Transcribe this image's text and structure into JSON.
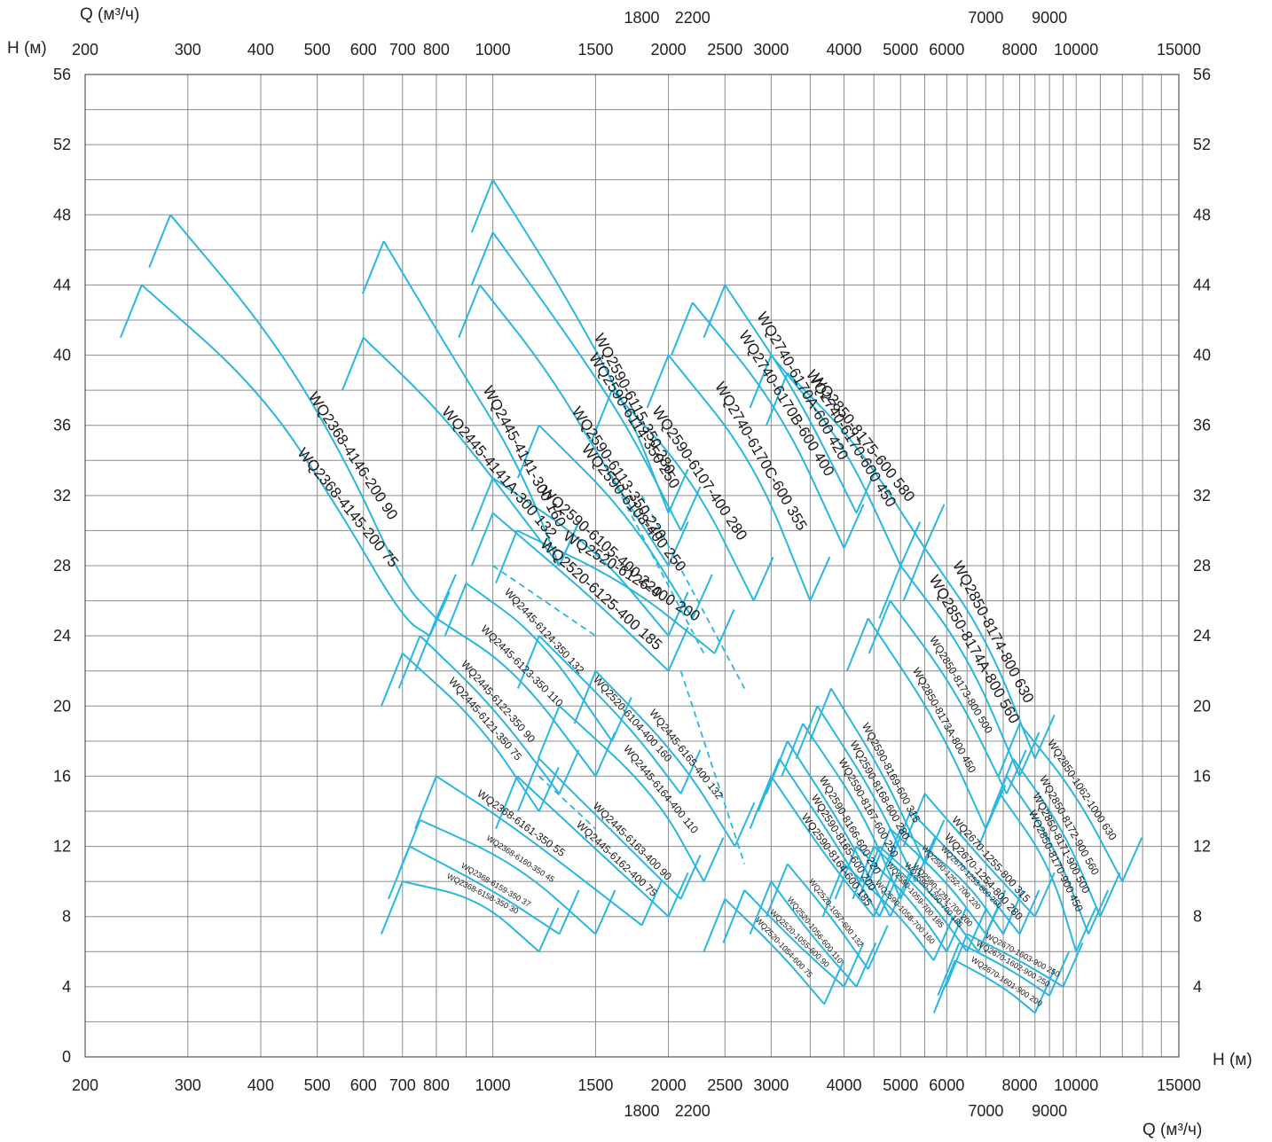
{
  "chart_data": {
    "type": "line",
    "title": "",
    "accent_color": "#29b6e0",
    "x_axis": {
      "label": "Q (м³/ч)",
      "scale": "log",
      "range": [
        200,
        15000
      ],
      "ticks_row1": [
        "200",
        "300",
        "400",
        "500",
        "600",
        "700",
        "800",
        "1000",
        "1500",
        "2000",
        "2500",
        "3000",
        "4000",
        "5000",
        "6000",
        "8000",
        "10000",
        "15000"
      ],
      "ticks_row2": [
        "1800",
        "2200",
        "7000",
        "9000"
      ],
      "tick_values_row1": [
        200,
        300,
        400,
        500,
        600,
        700,
        800,
        1000,
        1500,
        2000,
        2500,
        3000,
        4000,
        5000,
        6000,
        8000,
        10000,
        15000
      ],
      "tick_values_row2": [
        1800,
        2200,
        7000,
        9000
      ]
    },
    "y_axis": {
      "label": "H (м)",
      "range": [
        0,
        56
      ],
      "ticks": [
        "0",
        "4",
        "8",
        "12",
        "16",
        "20",
        "24",
        "28",
        "32",
        "36",
        "40",
        "44",
        "48",
        "52",
        "56"
      ]
    },
    "grid": true,
    "series": [
      {
        "name": "WQ2368-4146-200  90",
        "points": [
          [
            280,
            48
          ],
          [
            420,
            41
          ],
          [
            560,
            34
          ],
          [
            700,
            27
          ],
          [
            800,
            25
          ]
        ]
      },
      {
        "name": "WQ2368-4145-200  75",
        "points": [
          [
            250,
            44
          ],
          [
            400,
            38
          ],
          [
            550,
            31
          ],
          [
            700,
            25
          ],
          [
            780,
            24
          ]
        ]
      },
      {
        "name": "WQ2445-4141-300  160",
        "points": [
          [
            650,
            46.5
          ],
          [
            850,
            40
          ],
          [
            1100,
            34
          ],
          [
            1300,
            28
          ]
        ]
      },
      {
        "name": "WQ2445-4141A-300  132",
        "points": [
          [
            600,
            41
          ],
          [
            800,
            37
          ],
          [
            1000,
            33
          ],
          [
            1300,
            28
          ]
        ]
      },
      {
        "name": "WQ2590-6115-350  280",
        "points": [
          [
            1000,
            50
          ],
          [
            1300,
            44
          ],
          [
            1700,
            37
          ],
          [
            2000,
            31
          ]
        ]
      },
      {
        "name": "WQ2590-6114-350  250",
        "points": [
          [
            1000,
            47
          ],
          [
            1350,
            41
          ],
          [
            1700,
            36
          ],
          [
            2100,
            30
          ]
        ]
      },
      {
        "name": "WQ2590-6113-350  220",
        "points": [
          [
            950,
            44
          ],
          [
            1250,
            39
          ],
          [
            1600,
            33
          ],
          [
            2000,
            28
          ]
        ]
      },
      {
        "name": "WQ2740-6170-600  450",
        "points": [
          [
            3000,
            40
          ],
          [
            4000,
            35
          ],
          [
            5000,
            28
          ]
        ]
      },
      {
        "name": "WQ2740-6170A-600  420",
        "points": [
          [
            2500,
            44
          ],
          [
            3300,
            38
          ],
          [
            4200,
            31
          ]
        ]
      },
      {
        "name": "WQ2740-6170B-600  400",
        "points": [
          [
            2200,
            43
          ],
          [
            3100,
            37
          ],
          [
            4000,
            29
          ]
        ]
      },
      {
        "name": "WQ2740-6170C-600  355",
        "points": [
          [
            2000,
            40
          ],
          [
            2800,
            34
          ],
          [
            3500,
            26
          ]
        ]
      },
      {
        "name": "WQ2850-8175-600  580",
        "points": [
          [
            3200,
            39
          ],
          [
            4200,
            35
          ],
          [
            5500,
            29
          ]
        ]
      },
      {
        "name": "WQ2590-6108-400  250",
        "points": [
          [
            1200,
            36
          ],
          [
            1700,
            31
          ],
          [
            2200,
            25
          ]
        ]
      },
      {
        "name": "WQ2590-6107-400  280",
        "points": [
          [
            1600,
            38
          ],
          [
            2200,
            33
          ],
          [
            2800,
            26
          ]
        ]
      },
      {
        "name": "WQ2590-6105-400  220",
        "points": [
          [
            1000,
            33
          ],
          [
            1500,
            29
          ],
          [
            2000,
            24
          ]
        ]
      },
      {
        "name": "WQ2520-6125-400  185",
        "points": [
          [
            1000,
            31
          ],
          [
            1500,
            26
          ],
          [
            2000,
            22
          ]
        ]
      },
      {
        "name": "WQ2520-6126-400  200",
        "points": [
          [
            1100,
            30
          ],
          [
            1700,
            27
          ],
          [
            2400,
            23
          ]
        ]
      },
      {
        "name": "WQ2445-6124-350  132",
        "points": [
          [
            900,
            27
          ],
          [
            1200,
            24
          ],
          [
            1600,
            18
          ]
        ]
      },
      {
        "name": "WQ2445-6123-350  110",
        "points": [
          [
            800,
            25
          ],
          [
            1100,
            22
          ],
          [
            1500,
            16
          ]
        ]
      },
      {
        "name": "WQ2445-6122-350  90",
        "points": [
          [
            750,
            24
          ],
          [
            1000,
            20
          ],
          [
            1300,
            15
          ]
        ]
      },
      {
        "name": "WQ2445-6121-350  75",
        "points": [
          [
            700,
            23
          ],
          [
            950,
            19
          ],
          [
            1200,
            14
          ]
        ]
      },
      {
        "name": "WQ2520-6104-400  160",
        "points": [
          [
            1200,
            24
          ],
          [
            1700,
            19
          ],
          [
            2100,
            15
          ]
        ]
      },
      {
        "name": "WQ2445-6165-400  132",
        "points": [
          [
            1500,
            22
          ],
          [
            2100,
            17
          ],
          [
            2600,
            12
          ]
        ]
      },
      {
        "name": "WQ2445-6164-400  110",
        "points": [
          [
            1300,
            20
          ],
          [
            1900,
            15
          ],
          [
            2300,
            10
          ]
        ]
      },
      {
        "name": "WQ2445-6163-400  90",
        "points": [
          [
            1200,
            17
          ],
          [
            1700,
            12
          ],
          [
            2100,
            9
          ]
        ]
      },
      {
        "name": "WQ2445-6162-400  75",
        "points": [
          [
            1100,
            16
          ],
          [
            1600,
            11
          ],
          [
            2000,
            8
          ]
        ]
      },
      {
        "name": "WQ2368-6161-350  55",
        "points": [
          [
            800,
            16
          ],
          [
            1100,
            13
          ],
          [
            1800,
            7.5
          ]
        ]
      },
      {
        "name": "WQ2368-6160-350  45",
        "points": [
          [
            750,
            13.5
          ],
          [
            1100,
            11
          ],
          [
            1500,
            7
          ]
        ]
      },
      {
        "name": "WQ2368-6159-350  37",
        "points": [
          [
            720,
            12
          ],
          [
            1000,
            9.5
          ],
          [
            1300,
            7
          ]
        ]
      },
      {
        "name": "WQ2368-6158-350  30",
        "points": [
          [
            700,
            10
          ],
          [
            950,
            9
          ],
          [
            1200,
            6
          ]
        ]
      },
      {
        "name": "WQ2850-8174-800  630",
        "points": [
          [
            5500,
            29
          ],
          [
            7000,
            24
          ],
          [
            8500,
            17
          ]
        ]
      },
      {
        "name": "WQ2850-8174A-800  560",
        "points": [
          [
            5000,
            28
          ],
          [
            6500,
            23
          ],
          [
            8000,
            16
          ]
        ]
      },
      {
        "name": "WQ2850-8173-800  500",
        "points": [
          [
            4800,
            26
          ],
          [
            6200,
            21
          ],
          [
            7600,
            15
          ]
        ]
      },
      {
        "name": "WQ2850-8173A-800  450",
        "points": [
          [
            4400,
            25
          ],
          [
            5800,
            19
          ],
          [
            7000,
            13
          ]
        ]
      },
      {
        "name": "WQ2590-8169-600  315",
        "points": [
          [
            3800,
            21
          ],
          [
            4700,
            16
          ],
          [
            5500,
            11
          ]
        ]
      },
      {
        "name": "WQ2590-8168-600  280",
        "points": [
          [
            3600,
            20
          ],
          [
            4500,
            15
          ],
          [
            5300,
            10
          ]
        ]
      },
      {
        "name": "WQ2590-8167-600  250",
        "points": [
          [
            3400,
            19
          ],
          [
            4300,
            14
          ],
          [
            5000,
            9
          ]
        ]
      },
      {
        "name": "WQ2590-8166-600  220",
        "points": [
          [
            3200,
            18
          ],
          [
            4000,
            13
          ],
          [
            4800,
            8
          ]
        ]
      },
      {
        "name": "WQ2590-8165-600  200",
        "points": [
          [
            3100,
            17
          ],
          [
            3900,
            12
          ],
          [
            4600,
            8
          ]
        ]
      },
      {
        "name": "WQ2590-8164-600  185",
        "points": [
          [
            3000,
            16
          ],
          [
            3800,
            11
          ],
          [
            4500,
            8
          ]
        ]
      },
      {
        "name": "WQ2850-1062-1000  630",
        "points": [
          [
            8000,
            19
          ],
          [
            10000,
            15
          ],
          [
            12000,
            10
          ]
        ]
      },
      {
        "name": "WQ2850-8172-900  560",
        "points": [
          [
            7800,
            17
          ],
          [
            9500,
            13
          ],
          [
            11000,
            8
          ]
        ]
      },
      {
        "name": "WQ2850-8171-900  500",
        "points": [
          [
            7600,
            16
          ],
          [
            9200,
            12
          ],
          [
            10500,
            7
          ]
        ]
      },
      {
        "name": "WQ2850-8170-900  450",
        "points": [
          [
            7400,
            15
          ],
          [
            9000,
            11
          ],
          [
            10000,
            6
          ]
        ]
      },
      {
        "name": "WQ2670-1255-800  315",
        "points": [
          [
            5500,
            15
          ],
          [
            7000,
            11
          ],
          [
            8500,
            8
          ]
        ]
      },
      {
        "name": "WQ2670-1254-800  280",
        "points": [
          [
            5200,
            14
          ],
          [
            6800,
            10
          ],
          [
            8000,
            7
          ]
        ]
      },
      {
        "name": "WQ2670-1253-800  250",
        "points": [
          [
            5000,
            13
          ],
          [
            6500,
            10
          ],
          [
            7500,
            7
          ]
        ]
      },
      {
        "name": "WQ2590-1252-700  220",
        "points": [
          [
            4800,
            13
          ],
          [
            6000,
            10
          ],
          [
            7000,
            7
          ]
        ]
      },
      {
        "name": "WQ2590-1251-700  200",
        "points": [
          [
            4600,
            12
          ],
          [
            5800,
            9
          ],
          [
            6800,
            6
          ]
        ]
      },
      {
        "name": "WQ2590-1250-700  185",
        "points": [
          [
            4500,
            12
          ],
          [
            5600,
            9
          ],
          [
            6500,
            6
          ]
        ]
      },
      {
        "name": "WQ2590-1059-700  185",
        "points": [
          [
            4200,
            12
          ],
          [
            5200,
            9
          ],
          [
            6000,
            6
          ]
        ]
      },
      {
        "name": "WQ2590-1058-700  160",
        "points": [
          [
            4000,
            11
          ],
          [
            5000,
            8
          ],
          [
            5700,
            5.5
          ]
        ]
      },
      {
        "name": "WQ2520-1057-600  132",
        "points": [
          [
            3200,
            11
          ],
          [
            3800,
            8
          ],
          [
            4400,
            5
          ]
        ]
      },
      {
        "name": "WQ2520-1056-600  110",
        "points": [
          [
            3000,
            10
          ],
          [
            3500,
            7
          ],
          [
            4200,
            4
          ]
        ]
      },
      {
        "name": "WQ2520-1055-600  90",
        "points": [
          [
            2700,
            9.5
          ],
          [
            3300,
            6.5
          ],
          [
            4000,
            4
          ]
        ]
      },
      {
        "name": "WQ2520-1054-600  75",
        "points": [
          [
            2500,
            9
          ],
          [
            3100,
            6
          ],
          [
            3700,
            3
          ]
        ]
      },
      {
        "name": "WQ2670-1603-900  250",
        "points": [
          [
            6500,
            7
          ],
          [
            8000,
            5.5
          ],
          [
            9500,
            4
          ]
        ]
      },
      {
        "name": "WQ2670-1602-900  250",
        "points": [
          [
            6300,
            6.5
          ],
          [
            7700,
            5
          ],
          [
            9000,
            3.5
          ]
        ]
      },
      {
        "name": "WQ2670-1601-900  200",
        "points": [
          [
            6200,
            5.5
          ],
          [
            7500,
            4
          ],
          [
            8500,
            2.5
          ]
        ]
      }
    ]
  }
}
